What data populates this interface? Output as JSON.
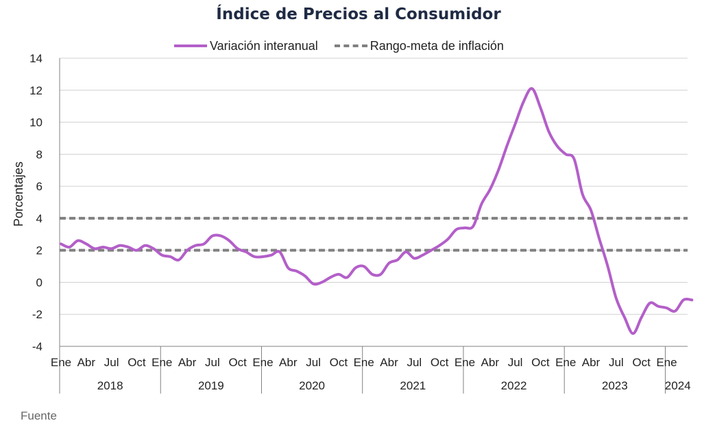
{
  "chart_data": {
    "type": "line",
    "title": "Índice de Precios al Consumidor",
    "ylabel": "Porcentajes",
    "xlabel": "",
    "ylim": [
      -4,
      14
    ],
    "yticks": [
      14,
      12,
      10,
      8,
      6,
      4,
      2,
      0,
      -2,
      -4
    ],
    "grid": "horizontal",
    "legend_position": "top",
    "x_months": [
      "Ene",
      "Abr",
      "Jul",
      "Oct"
    ],
    "years": [
      "2018",
      "2019",
      "2020",
      "2021",
      "2022",
      "2023"
    ],
    "last_months": [
      "Ene"
    ],
    "last_year": "2024",
    "negative_tick_color": "#cc0000",
    "series": [
      {
        "name": "Variación interanual",
        "color": "#b35fc9",
        "style": "solid",
        "start": "2018-01",
        "values": [
          2.4,
          2.2,
          2.6,
          2.4,
          2.1,
          2.2,
          2.1,
          2.3,
          2.2,
          2.0,
          2.3,
          2.1,
          1.7,
          1.6,
          1.4,
          2.0,
          2.3,
          2.4,
          2.9,
          2.9,
          2.6,
          2.1,
          1.9,
          1.6,
          1.6,
          1.7,
          1.9,
          0.9,
          0.7,
          0.4,
          -0.1,
          0.0,
          0.3,
          0.5,
          0.3,
          0.9,
          1.0,
          0.5,
          0.5,
          1.2,
          1.4,
          1.9,
          1.5,
          1.7,
          2.0,
          2.3,
          2.7,
          3.3,
          3.4,
          3.5,
          4.9,
          5.8,
          7.0,
          8.5,
          9.9,
          11.3,
          12.1,
          10.9,
          9.4,
          8.5,
          8.0,
          7.7,
          5.5,
          4.5,
          2.7,
          1.0,
          -1.0,
          -2.2,
          -3.2,
          -2.2,
          -1.3,
          -1.5,
          -1.6,
          -1.8,
          -1.1,
          -1.1
        ]
      },
      {
        "name": "Rango-meta de inflación",
        "color": "#808080",
        "style": "dashed",
        "bounds": [
          2,
          4
        ]
      }
    ]
  },
  "footer": {
    "source_text": "Fuente"
  }
}
